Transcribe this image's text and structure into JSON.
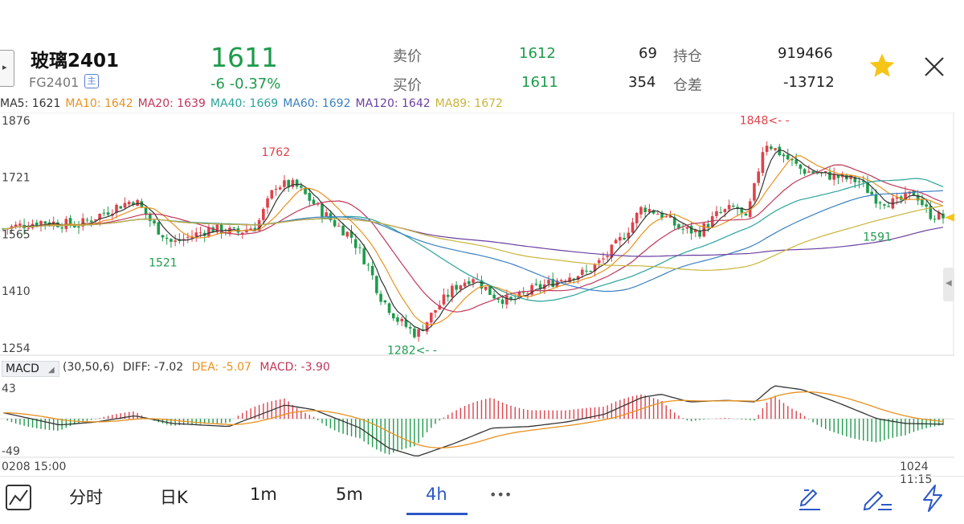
{
  "header": {
    "side_toggle": "▸",
    "symbol_name": "玻璃2401",
    "symbol_code": "FG2401",
    "badge": "主",
    "last_price": "1611",
    "change": "-6  -0.37%",
    "quotes": {
      "ask_label": "卖价",
      "ask_price": "1612",
      "ask_vol": "69",
      "bid_label": "买价",
      "bid_price": "1611",
      "bid_vol": "354",
      "oi_label": "持仓",
      "oi_value": "919466",
      "diff_label": "仓差",
      "diff_value": "-13712"
    },
    "colors": {
      "down": "#1e9b4c",
      "up": "#e0414a",
      "accent": "#2c57c7",
      "star": "#f5c518"
    }
  },
  "ma_legend": [
    {
      "label": "MA5: 1621",
      "color": "#333333"
    },
    {
      "label": "MA10: 1642",
      "color": "#e8911f"
    },
    {
      "label": "MA20: 1639",
      "color": "#c0385a"
    },
    {
      "label": "MA40: 1669",
      "color": "#2aa39a"
    },
    {
      "label": "MA60: 1692",
      "color": "#3a7fc1"
    },
    {
      "label": "MA120: 1642",
      "color": "#6a3fa0"
    },
    {
      "label": "MA89: 1672",
      "color": "#c9b43a"
    }
  ],
  "macd": {
    "title": "MACD",
    "params": "(30,50,6)",
    "diff": "DIFF: -7.02",
    "dea": "DEA: -5.07",
    "macd": "MACD: -3.90",
    "colors": {
      "diff": "#333333",
      "dea": "#e8911f",
      "macd": "#c0385a"
    }
  },
  "toolbar": {
    "tabs": [
      "分时",
      "日K",
      "1m",
      "5m",
      "4h"
    ],
    "active_tab": "4h",
    "more": "•••",
    "icons": [
      "line-chart-icon",
      "draw-tool-icon",
      "edit-note-icon",
      "lightning-icon"
    ]
  },
  "chart_data": {
    "type": "candlestick",
    "main_axis": {
      "ylim": [
        1254,
        1876
      ],
      "ticks": [
        "1876",
        "1721",
        "1565",
        "1410",
        "1254"
      ]
    },
    "macd_axis": {
      "ylim": [
        -49,
        43
      ],
      "ticks": [
        "43",
        "-49"
      ]
    },
    "x_start": "0208 15:00",
    "x_end": "1024 11:15",
    "annotations": [
      {
        "text": "1762",
        "kind": "high",
        "x_frac": 0.29,
        "value": 1762
      },
      {
        "text": "1521",
        "kind": "low",
        "x_frac": 0.17,
        "value": 1521
      },
      {
        "text": "1282<- -",
        "kind": "low",
        "x_frac": 0.435,
        "value": 1282
      },
      {
        "text": "1848<- -",
        "kind": "high",
        "x_frac": 0.81,
        "value": 1848
      },
      {
        "text": "1591",
        "kind": "low",
        "x_frac": 0.93,
        "value": 1591
      }
    ],
    "price_path": [
      [
        0.0,
        1580
      ],
      [
        0.04,
        1600
      ],
      [
        0.08,
        1590
      ],
      [
        0.12,
        1640
      ],
      [
        0.14,
        1660
      ],
      [
        0.16,
        1590
      ],
      [
        0.18,
        1540
      ],
      [
        0.2,
        1560
      ],
      [
        0.22,
        1580
      ],
      [
        0.25,
        1570
      ],
      [
        0.27,
        1590
      ],
      [
        0.29,
        1700
      ],
      [
        0.31,
        1700
      ],
      [
        0.33,
        1650
      ],
      [
        0.35,
        1600
      ],
      [
        0.37,
        1560
      ],
      [
        0.39,
        1470
      ],
      [
        0.4,
        1400
      ],
      [
        0.42,
        1330
      ],
      [
        0.44,
        1290
      ],
      [
        0.46,
        1360
      ],
      [
        0.48,
        1420
      ],
      [
        0.5,
        1450
      ],
      [
        0.52,
        1400
      ],
      [
        0.54,
        1380
      ],
      [
        0.56,
        1410
      ],
      [
        0.58,
        1430
      ],
      [
        0.6,
        1450
      ],
      [
        0.62,
        1460
      ],
      [
        0.64,
        1500
      ],
      [
        0.66,
        1560
      ],
      [
        0.68,
        1640
      ],
      [
        0.7,
        1620
      ],
      [
        0.72,
        1580
      ],
      [
        0.74,
        1570
      ],
      [
        0.76,
        1620
      ],
      [
        0.78,
        1640
      ],
      [
        0.79,
        1600
      ],
      [
        0.8,
        1700
      ],
      [
        0.81,
        1820
      ],
      [
        0.83,
        1780
      ],
      [
        0.85,
        1740
      ],
      [
        0.87,
        1730
      ],
      [
        0.89,
        1720
      ],
      [
        0.91,
        1710
      ],
      [
        0.93,
        1660
      ],
      [
        0.95,
        1650
      ],
      [
        0.97,
        1680
      ],
      [
        0.985,
        1620
      ],
      [
        1.0,
        1611
      ]
    ],
    "macd_diff_path": [
      [
        0.0,
        8
      ],
      [
        0.06,
        -8
      ],
      [
        0.1,
        -4
      ],
      [
        0.14,
        4
      ],
      [
        0.18,
        -6
      ],
      [
        0.24,
        -10
      ],
      [
        0.3,
        18
      ],
      [
        0.33,
        12
      ],
      [
        0.38,
        -12
      ],
      [
        0.41,
        -38
      ],
      [
        0.44,
        -49
      ],
      [
        0.48,
        -32
      ],
      [
        0.52,
        -12
      ],
      [
        0.56,
        -10
      ],
      [
        0.6,
        -4
      ],
      [
        0.64,
        6
      ],
      [
        0.68,
        28
      ],
      [
        0.7,
        32
      ],
      [
        0.73,
        22
      ],
      [
        0.77,
        24
      ],
      [
        0.8,
        22
      ],
      [
        0.82,
        43
      ],
      [
        0.85,
        38
      ],
      [
        0.89,
        20
      ],
      [
        0.93,
        0
      ],
      [
        0.96,
        -6
      ],
      [
        1.0,
        -7
      ]
    ]
  }
}
